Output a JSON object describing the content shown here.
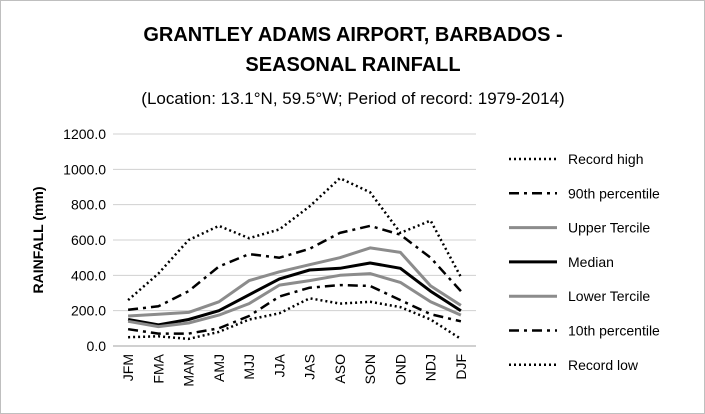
{
  "chart_data": {
    "type": "line",
    "title_lines": [
      "GRANTLEY ADAMS AIRPORT, BARBADOS -",
      "SEASONAL RAINFALL"
    ],
    "subtitle": "(Location: 13.1°N, 59.5°W; Period of record: 1979-2014)",
    "xlabel": "",
    "ylabel": "RAINFALL (mm)",
    "ylim": [
      0,
      1200
    ],
    "yticks": [
      "0.0",
      "200.0",
      "400.0",
      "600.0",
      "800.0",
      "1000.0",
      "1200.0"
    ],
    "grid": true,
    "legend_position": "right",
    "categories": [
      "JFM",
      "FMA",
      "MAM",
      "AMJ",
      "MJJ",
      "JJA",
      "JAS",
      "ASO",
      "SON",
      "OND",
      "NDJ",
      "DJF"
    ],
    "series": [
      {
        "name": "Record high",
        "color": "#000000",
        "style": "dotted",
        "values": [
          260,
          410,
          600,
          680,
          610,
          660,
          790,
          950,
          870,
          640,
          710,
          390
        ]
      },
      {
        "name": "90th percentile",
        "color": "#000000",
        "style": "dashdot",
        "values": [
          205,
          225,
          310,
          450,
          520,
          500,
          550,
          640,
          680,
          630,
          500,
          310
        ]
      },
      {
        "name": "Upper Tercile",
        "color": "#8c8c8c",
        "style": "solid",
        "values": [
          170,
          180,
          190,
          250,
          370,
          420,
          460,
          500,
          555,
          530,
          340,
          230
        ]
      },
      {
        "name": "Median",
        "color": "#000000",
        "style": "solid",
        "values": [
          150,
          120,
          150,
          200,
          290,
          380,
          430,
          440,
          470,
          440,
          310,
          200
        ]
      },
      {
        "name": "Lower Tercile",
        "color": "#8c8c8c",
        "style": "solid",
        "values": [
          140,
          110,
          130,
          175,
          240,
          345,
          370,
          400,
          410,
          360,
          250,
          175
        ]
      },
      {
        "name": "10th percentile",
        "color": "#000000",
        "style": "dashdot",
        "values": [
          95,
          70,
          70,
          100,
          170,
          280,
          330,
          345,
          340,
          260,
          180,
          140
        ]
      },
      {
        "name": "Record low",
        "color": "#000000",
        "style": "dotted",
        "values": [
          50,
          55,
          40,
          80,
          150,
          185,
          270,
          240,
          250,
          220,
          150,
          40
        ]
      }
    ]
  }
}
